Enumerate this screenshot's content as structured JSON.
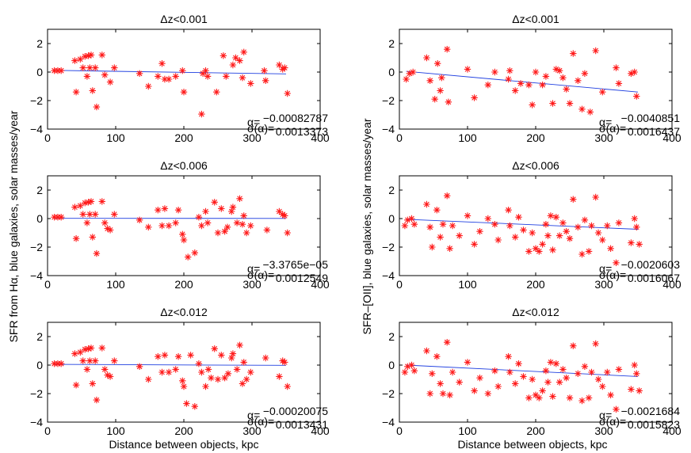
{
  "figure": {
    "xlabel": "Distance between objects, kpc",
    "ylabel_left": "SFR from Hα, blue galaxies, solar masses/year",
    "ylabel_right": "SFR–[OII], blue galaxies, solar masses/year",
    "alpha_label": "α=",
    "sigma_label": "σ(α)="
  },
  "chart_data": [
    {
      "id": "ha-dz0001",
      "type": "scatter",
      "title": "Δz<0.001",
      "xlim": [
        0,
        400
      ],
      "ylim": [
        -4,
        3
      ],
      "xticks": [
        0,
        100,
        200,
        300,
        400
      ],
      "yticks": [
        2,
        0,
        -2,
        -4
      ],
      "alpha": "−0.00082787",
      "sigma": "0.0013373",
      "fit": {
        "x": [
          10,
          350
        ],
        "y": [
          0.12,
          -0.13
        ]
      },
      "points": {
        "x": [
          10,
          15,
          20,
          40,
          42,
          48,
          52,
          55,
          58,
          60,
          62,
          64,
          66,
          70,
          72,
          80,
          84,
          92,
          98,
          135,
          148,
          162,
          168,
          172,
          178,
          188,
          198,
          200,
          226,
          228,
          232,
          235,
          248,
          258,
          262,
          272,
          276,
          282,
          286,
          288,
          298,
          318,
          320,
          340,
          345,
          348,
          352
        ],
        "y": [
          0.1,
          0.1,
          0.1,
          0.8,
          -1.4,
          0.9,
          0.3,
          1.1,
          -0.3,
          1.15,
          0.3,
          1.2,
          -1.3,
          0.3,
          -2.45,
          1.2,
          -0.2,
          -0.7,
          0.3,
          -0.1,
          -1.0,
          -0.3,
          0.6,
          -0.5,
          -0.5,
          -0.3,
          0.1,
          -1.4,
          -2.95,
          -0.1,
          0.1,
          -0.3,
          -1.4,
          1.15,
          -0.3,
          0.5,
          1.0,
          0.8,
          -0.4,
          1.4,
          -0.8,
          0.1,
          -0.6,
          0.5,
          0.2,
          0.3,
          -1.5
        ]
      }
    },
    {
      "id": "oii-dz0001",
      "type": "scatter",
      "title": "Δz<0.001",
      "xlim": [
        0,
        400
      ],
      "ylim": [
        -4,
        3
      ],
      "xticks": [
        0,
        100,
        200,
        300,
        400
      ],
      "yticks": [
        2,
        0,
        -2,
        -4
      ],
      "alpha": "−0.0040851",
      "sigma": "0.0016437",
      "fit": {
        "x": [
          10,
          350
        ],
        "y": [
          0.05,
          -1.4
        ]
      },
      "points": {
        "x": [
          10,
          15,
          20,
          40,
          45,
          52,
          56,
          60,
          62,
          70,
          72,
          100,
          110,
          130,
          140,
          160,
          162,
          170,
          178,
          190,
          195,
          200,
          210,
          215,
          225,
          230,
          235,
          240,
          245,
          250,
          255,
          262,
          268,
          272,
          280,
          288,
          298,
          318,
          322,
          340,
          345,
          348
        ],
        "y": [
          -0.5,
          -0.1,
          0.0,
          1.0,
          -0.6,
          -1.9,
          0.6,
          -1.3,
          -0.4,
          1.6,
          -2.1,
          0.2,
          -1.8,
          -0.9,
          0.0,
          -0.5,
          0.1,
          -1.3,
          -0.8,
          -0.9,
          -2.3,
          0.0,
          -0.9,
          -0.3,
          -2.2,
          0.2,
          0.1,
          -0.4,
          -1.2,
          -2.2,
          1.3,
          -0.6,
          -2.6,
          -0.1,
          -2.8,
          1.5,
          -1.4,
          0.3,
          -0.8,
          -0.1,
          0.0,
          -1.7
        ]
      }
    },
    {
      "id": "ha-dz0006",
      "type": "scatter",
      "title": "Δz<0.006",
      "xlim": [
        0,
        400
      ],
      "ylim": [
        -4,
        3
      ],
      "xticks": [
        0,
        100,
        200,
        300,
        400
      ],
      "yticks": [
        2,
        0,
        -2,
        -4
      ],
      "alpha": "−3.3765e−05",
      "sigma": "0.0012549",
      "fit": {
        "x": [
          10,
          350
        ],
        "y": [
          0.02,
          0.01
        ]
      },
      "points": {
        "x": [
          10,
          15,
          20,
          40,
          42,
          48,
          52,
          55,
          58,
          60,
          62,
          64,
          66,
          70,
          72,
          80,
          84,
          88,
          92,
          98,
          135,
          148,
          162,
          168,
          172,
          178,
          188,
          192,
          198,
          200,
          206,
          216,
          222,
          226,
          232,
          235,
          245,
          250,
          255,
          260,
          264,
          270,
          272,
          278,
          282,
          286,
          288,
          292,
          298,
          322,
          340,
          345,
          348,
          352
        ],
        "y": [
          0.1,
          0.1,
          0.1,
          0.8,
          -1.4,
          0.9,
          0.3,
          1.1,
          -0.3,
          1.15,
          0.3,
          1.2,
          -1.3,
          0.3,
          -2.45,
          1.2,
          -0.3,
          -0.7,
          -0.8,
          0.3,
          -0.1,
          -0.6,
          0.6,
          -0.5,
          0.7,
          -0.5,
          -0.3,
          0.6,
          -1.1,
          -1.5,
          -2.7,
          -2.4,
          0.1,
          -0.5,
          0.5,
          -0.3,
          1.15,
          -1.0,
          0.7,
          -0.9,
          -0.6,
          0.5,
          0.8,
          -0.3,
          1.4,
          -0.4,
          0.2,
          -1.0,
          -0.5,
          -0.8,
          0.5,
          0.3,
          0.2,
          -1.0
        ]
      }
    },
    {
      "id": "oii-dz0006",
      "type": "scatter",
      "title": "Δz<0.006",
      "xlim": [
        0,
        400
      ],
      "ylim": [
        -4,
        3
      ],
      "xticks": [
        0,
        100,
        200,
        300,
        400
      ],
      "yticks": [
        2,
        0,
        -2,
        -4
      ],
      "alpha": "−0.0020603",
      "sigma": "0.0016067",
      "fit": {
        "x": [
          10,
          350
        ],
        "y": [
          -0.05,
          -0.75
        ]
      },
      "points": {
        "x": [
          8,
          12,
          18,
          22,
          40,
          45,
          48,
          55,
          60,
          64,
          70,
          74,
          78,
          88,
          100,
          110,
          118,
          130,
          140,
          145,
          160,
          162,
          170,
          175,
          182,
          190,
          195,
          200,
          205,
          210,
          215,
          218,
          222,
          225,
          230,
          235,
          240,
          245,
          250,
          255,
          262,
          268,
          272,
          278,
          282,
          288,
          292,
          298,
          305,
          310,
          318,
          322,
          340,
          345,
          348,
          352
        ],
        "y": [
          -0.5,
          -0.1,
          0.0,
          -0.4,
          1.0,
          -0.6,
          -2.0,
          0.6,
          -1.3,
          -0.4,
          1.6,
          -2.1,
          -0.5,
          -1.2,
          0.2,
          -1.8,
          -0.9,
          0.0,
          -0.4,
          -1.5,
          0.6,
          -0.5,
          -1.3,
          0.1,
          -0.8,
          -2.3,
          -1.0,
          -2.1,
          -2.3,
          -1.8,
          -0.4,
          -1.2,
          0.2,
          -2.2,
          0.1,
          -1.2,
          -0.3,
          -0.9,
          -1.4,
          1.35,
          -0.6,
          -2.5,
          -0.1,
          -2.3,
          -0.5,
          1.5,
          -1.0,
          -1.5,
          -0.5,
          -2.1,
          -3.1,
          -0.3,
          -1.7,
          0.0,
          -0.6,
          -1.8
        ]
      }
    },
    {
      "id": "ha-dz0012",
      "type": "scatter",
      "title": "Δz<0.012",
      "xlim": [
        0,
        400
      ],
      "ylim": [
        -4,
        3
      ],
      "xticks": [
        0,
        100,
        200,
        300,
        400
      ],
      "yticks": [
        2,
        0,
        -2,
        -4
      ],
      "alpha": "−0.00020075",
      "sigma": "0.0013431",
      "fit": {
        "x": [
          10,
          350
        ],
        "y": [
          0.05,
          -0.02
        ]
      },
      "points": {
        "x": [
          10,
          15,
          20,
          40,
          42,
          48,
          52,
          55,
          58,
          60,
          62,
          64,
          66,
          70,
          72,
          80,
          84,
          88,
          92,
          98,
          135,
          148,
          162,
          168,
          172,
          178,
          188,
          192,
          198,
          200,
          204,
          210,
          216,
          222,
          226,
          232,
          236,
          240,
          245,
          250,
          255,
          260,
          265,
          270,
          272,
          278,
          282,
          286,
          288,
          292,
          298,
          320,
          340,
          345,
          348,
          352
        ],
        "y": [
          0.1,
          0.1,
          0.1,
          0.8,
          -1.4,
          0.9,
          0.3,
          1.1,
          -0.3,
          1.15,
          0.3,
          1.2,
          -1.3,
          0.3,
          -2.45,
          1.2,
          -0.3,
          -0.7,
          -0.8,
          0.3,
          -0.1,
          -1.0,
          0.6,
          -0.5,
          0.7,
          -0.5,
          -0.3,
          0.6,
          -1.1,
          -1.5,
          -2.7,
          0.7,
          -2.9,
          0.1,
          -0.5,
          -1.5,
          -0.3,
          -0.9,
          1.15,
          -1.0,
          0.7,
          -0.9,
          -0.6,
          0.5,
          0.8,
          -0.3,
          1.4,
          -1.3,
          0.2,
          -1.0,
          -0.5,
          0.5,
          -0.8,
          0.3,
          0.2,
          -1.5
        ]
      }
    },
    {
      "id": "oii-dz0012",
      "type": "scatter",
      "title": "Δz<0.012",
      "xlim": [
        0,
        400
      ],
      "ylim": [
        -4,
        3
      ],
      "xticks": [
        0,
        100,
        200,
        300,
        400
      ],
      "yticks": [
        2,
        0,
        -2,
        -4
      ],
      "alpha": "−0.0021684",
      "sigma": "0.0015823",
      "fit": {
        "x": [
          10,
          350
        ],
        "y": [
          0.0,
          -0.8
        ]
      },
      "points": {
        "x": [
          8,
          12,
          18,
          22,
          40,
          45,
          48,
          55,
          60,
          64,
          70,
          74,
          78,
          88,
          100,
          110,
          118,
          130,
          140,
          145,
          160,
          162,
          170,
          175,
          182,
          190,
          195,
          200,
          205,
          210,
          215,
          218,
          222,
          225,
          230,
          235,
          240,
          245,
          250,
          255,
          262,
          268,
          272,
          278,
          282,
          288,
          292,
          298,
          305,
          310,
          318,
          322,
          340,
          345,
          348,
          352
        ],
        "y": [
          -0.5,
          -0.1,
          0.0,
          -0.4,
          1.0,
          -2.0,
          -0.6,
          0.6,
          -1.3,
          -2.0,
          1.6,
          -2.1,
          -0.5,
          -1.2,
          0.2,
          -1.8,
          -0.9,
          -2.0,
          -0.4,
          -1.5,
          0.6,
          -0.5,
          -1.3,
          0.1,
          -0.8,
          -2.3,
          -1.0,
          -2.1,
          -2.3,
          -1.8,
          -0.4,
          -1.2,
          0.2,
          -2.2,
          0.1,
          -1.2,
          -0.3,
          -0.9,
          -2.3,
          1.35,
          -0.6,
          -2.5,
          -0.1,
          -2.3,
          -0.5,
          1.5,
          -1.0,
          -1.5,
          -0.5,
          -2.1,
          -3.1,
          -0.3,
          -1.7,
          0.0,
          -0.6,
          -1.8
        ]
      }
    }
  ]
}
